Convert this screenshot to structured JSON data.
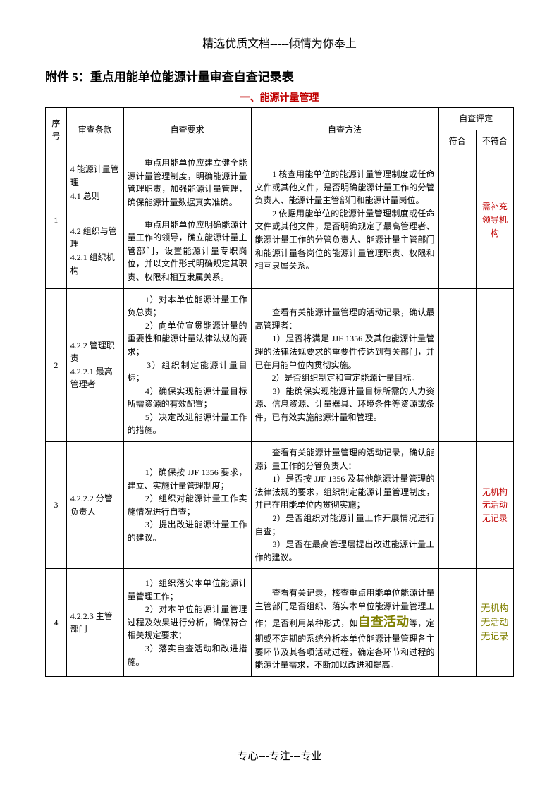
{
  "header": "精选优质文档-----倾情为你奉上",
  "title": "附件 5：重点用能单位能源计量审查自查记录表",
  "section": "一、能源计量管理",
  "footer": "专心---专注---专业",
  "cols": {
    "seq": "序号",
    "clause": "审查条款",
    "req": "自查要求",
    "method": "自查方法",
    "assess": "自查评定",
    "pass": "符合",
    "fail": "不符合"
  },
  "widths": {
    "seq": 28,
    "clause": 76,
    "req": 170,
    "method": 250,
    "pass": 50,
    "fail": 50
  },
  "r1": {
    "seq": "1",
    "clauseA": "4 能源计量管理\n4.1 总则",
    "reqA": "　　重点用能单位应建立健全能源计量管理制度，明确能源计量管理职责，加强能源计量管理，确保能源计量数据真实准确。",
    "clauseB": "4.2 组织与管理\n4.2.1 组织机构",
    "reqB": "　　重点用能单位应明确能源计量工作的领导，确立能源计量主管部门，设置能源计量专职岗位，并以文件形式明确规定其职责、权限和相互隶属关系。",
    "method": "　　1 核查用能单位的能源计量管理制度或任命文件或其他文件，是否明确能源计量工作的分管负责人、能源计量主管部门和能源计量岗位。\n　　2 依据用能单位的能源计量管理制度或任命文件或其他文件，是否明确规定了最高管理者、能源计量工作的分管负责人、能源计量主管部门和能源计量各岗位的能源计量管理职责、权限和相互隶属关系。",
    "fail": "需补充领导机构"
  },
  "r2": {
    "seq": "2",
    "clause": "4.2.2 管理职责\n4.2.2.1 最高管理者",
    "req": "　　1）对本单位能源计量工作负总责；\n　　2）向单位宣贯能源计量的重要性和能源计量法律法规的要求；\n　　3）组织制定能源计量目标；\n　　4）确保实现能源计量目标所需资源的有效配置；\n　　5）决定改进能源计量工作的措施。",
    "method": "　　查看有关能源计量管理的活动记录，确认最高管理者：\n　　1）是否将满足 JJF 1356 及其他能源计量管理的法律法规要求的重要性传达到有关部门，并已在用能单位内贯彻实施。\n　　2）是否组织制定和审定能源计量目标。\n　　3）能确保实现能源计量目标所需的人力资源、信息资源、计量器具、环境条件等资源或条件，已有效实施能源计量和管理。"
  },
  "r3": {
    "seq": "3",
    "clause": "4.2.2.2 分管负责人",
    "req": "　　1）确保按 JJF 1356 要求，建立、实施计量管理制度；\n　　2）组织对能源计量工作实施情况进行自查；\n　　3）提出改进能源计量工作的建议。",
    "method": "　　查看有关能源计量管理的活动记录，确认能源计量工作的分管负责人：\n　　1）是否按 JJF 1356 及其他能源计量管理的法律法规的要求，组织制定能源计量管理制度，并已在用能单位内贯彻实施；\n　　2）是否组织对能源计量工作开展情况进行自查；\n　　3）是否在最高管理层提出改进能源计量工作的建议。",
    "fail": "无机构\n无活动\n无记录"
  },
  "r4": {
    "seq": "4",
    "clause": "4.2.2.3 主管部门",
    "req": "　　1）组织落实本单位能源计量管理工作；\n　　2）对本单位能源计量管理过程及效果进行分析，确保符合相关规定要求；\n　　3）落实自查活动和改进措施。",
    "methodPre": "　　查看有关记录，核查重点用能单位能源计量主管部门是否组织、落实本单位能源计量管理工作；是否利用某种形式，如",
    "methodBold": "自查活动",
    "methodPost": "等，定期或不定期的系统分析本单位能源计量管理各主要环节及其各项活动过程，确定各环节和过程的能源计量需求，不断加以改进和提高。",
    "fail": "无机构\n无活动\n无记录"
  }
}
